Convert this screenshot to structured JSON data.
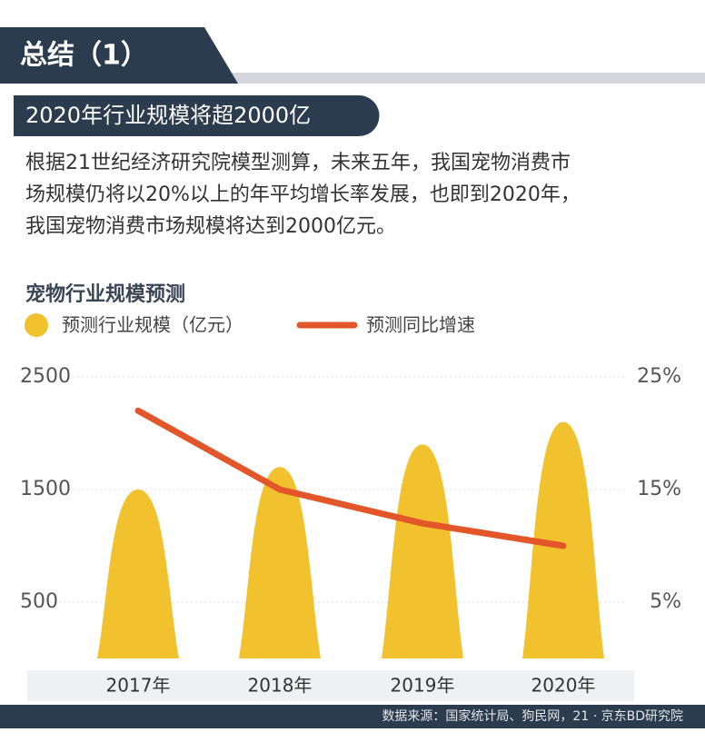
{
  "header": {
    "title": "总结（1）"
  },
  "subtitle": "2020年行业规模将超2000亿",
  "paragraph": [
    "根据21世纪经济研究院模型测算，未来五年，我国宠物消费市",
    "场规模仍将以20%以上的年平均增长率发展，也即到2020年，",
    "我国宠物消费市场规模将达到2000亿元。"
  ],
  "chart_data": {
    "type": "bar",
    "title": "宠物行业规模预测",
    "categories": [
      "2017年",
      "2018年",
      "2019年",
      "2020年"
    ],
    "series": [
      {
        "name": "预测行业规模（亿元）",
        "color": "#f2c12e",
        "type": "bar",
        "values": [
          1500,
          1700,
          1900,
          2100
        ]
      },
      {
        "name": "预测同比增速",
        "color": "#e2562a",
        "type": "line",
        "axis": "y2",
        "values": [
          22,
          15,
          12,
          10
        ]
      }
    ],
    "ylim": [
      0,
      2500
    ],
    "yticks": [
      500,
      1500,
      2500
    ],
    "y2lim": [
      0,
      25
    ],
    "y2ticks": [
      {
        "value": 5,
        "label": "5%"
      },
      {
        "value": 15,
        "label": "15%"
      },
      {
        "value": 25,
        "label": "25%"
      }
    ],
    "grid": true
  },
  "source": "数据来源：国家统计局、狗民网，21 · 京东BD研究院"
}
